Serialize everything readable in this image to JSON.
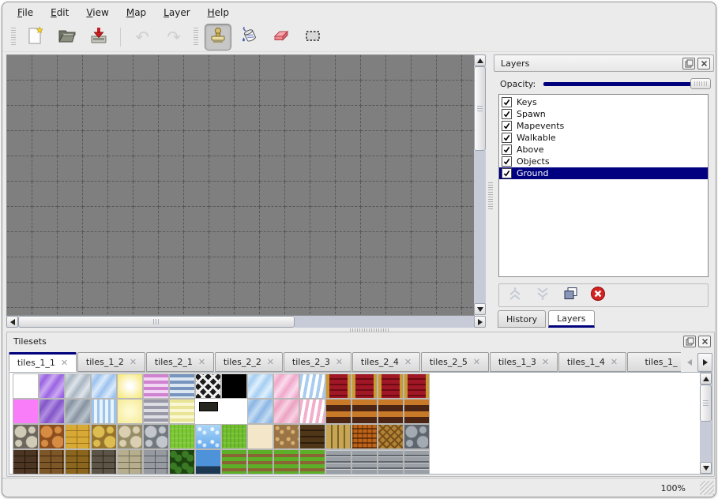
{
  "menubar": {
    "items": [
      {
        "label": "File"
      },
      {
        "label": "Edit"
      },
      {
        "label": "View"
      },
      {
        "label": "Map"
      },
      {
        "label": "Layer"
      },
      {
        "label": "Help"
      }
    ]
  },
  "toolbar": {
    "buttons": [
      {
        "name": "new-map",
        "icon": "new-file-icon",
        "disabled": false,
        "selected": false,
        "divider": "none"
      },
      {
        "name": "open-map",
        "icon": "open-file-icon",
        "disabled": false,
        "selected": false,
        "divider": "none"
      },
      {
        "name": "save-map",
        "icon": "save-icon",
        "disabled": false,
        "selected": false,
        "divider": "none"
      },
      {
        "name": "undo",
        "icon": "undo-icon",
        "disabled": true,
        "selected": false,
        "divider": "sep"
      },
      {
        "name": "redo",
        "icon": "redo-icon",
        "disabled": true,
        "selected": false,
        "divider": "none"
      },
      {
        "name": "stamp-tool",
        "icon": "stamp-icon",
        "disabled": false,
        "selected": true,
        "divider": "grip"
      },
      {
        "name": "fill-tool",
        "icon": "fill-icon",
        "disabled": false,
        "selected": false,
        "divider": "none"
      },
      {
        "name": "eraser-tool",
        "icon": "eraser-icon",
        "disabled": false,
        "selected": false,
        "divider": "none"
      },
      {
        "name": "select-tool",
        "icon": "select-icon",
        "disabled": false,
        "selected": false,
        "divider": "none"
      }
    ]
  },
  "layers_panel": {
    "title": "Layers",
    "opacity_label": "Opacity:",
    "opacity_slider_at": "max",
    "layers": [
      {
        "label": "Keys",
        "checked": true,
        "selected": false
      },
      {
        "label": "Spawn",
        "checked": true,
        "selected": false
      },
      {
        "label": "Mapevents",
        "checked": true,
        "selected": false
      },
      {
        "label": "Walkable",
        "checked": true,
        "selected": false
      },
      {
        "label": "Above",
        "checked": true,
        "selected": false
      },
      {
        "label": "Objects",
        "checked": true,
        "selected": false
      },
      {
        "label": "Ground",
        "checked": true,
        "selected": true
      }
    ],
    "buttons": [
      {
        "name": "move-layer-up",
        "icon": "move-up-icon",
        "disabled": true
      },
      {
        "name": "move-layer-down",
        "icon": "move-down-icon",
        "disabled": true
      },
      {
        "name": "duplicate-layer",
        "icon": "duplicate-icon",
        "disabled": false
      },
      {
        "name": "delete-layer",
        "icon": "delete-icon",
        "disabled": false
      }
    ],
    "tabs": [
      {
        "label": "History",
        "active": false
      },
      {
        "label": "Layers",
        "active": true
      }
    ]
  },
  "tilesets_panel": {
    "title": "Tilesets",
    "tabs": [
      {
        "label": "tiles_1_1",
        "active": true,
        "closable": true
      },
      {
        "label": "tiles_1_2",
        "active": false,
        "closable": true
      },
      {
        "label": "tiles_2_1",
        "active": false,
        "closable": true
      },
      {
        "label": "tiles_2_2",
        "active": false,
        "closable": true
      },
      {
        "label": "tiles_2_3",
        "active": false,
        "closable": true
      },
      {
        "label": "tiles_2_4",
        "active": false,
        "closable": true
      },
      {
        "label": "tiles_2_5",
        "active": false,
        "closable": true
      },
      {
        "label": "tiles_1_3",
        "active": false,
        "closable": true
      },
      {
        "label": "tiles_1_4",
        "active": false,
        "closable": true
      },
      {
        "label": "tiles_1_",
        "active": false,
        "closable": false
      }
    ],
    "palette_rows": [
      [
        {
          "k": "plain",
          "a": "#ffffff",
          "b": "#e8e8e8"
        },
        {
          "k": "glass",
          "a": "#9a64e2",
          "b": "#cbaaf2"
        },
        {
          "k": "glass",
          "a": "#a9b6c2",
          "b": "#dfe5ea"
        },
        {
          "k": "glass",
          "a": "#9cc2ee",
          "b": "#dcebfa"
        },
        {
          "k": "glow",
          "a": "#ffffff",
          "b": "#f7e97e"
        },
        {
          "k": "hstripes",
          "a": "#cf82cf",
          "b": "#f3d6f3"
        },
        {
          "k": "hstripes",
          "a": "#7694be",
          "b": "#dde7f2"
        },
        {
          "k": "lattice",
          "a": "#1c1c1c",
          "b": "#f0f0f0"
        },
        {
          "k": "plain",
          "a": "#000000",
          "b": "#000000"
        },
        {
          "k": "glass",
          "a": "#a6cef2",
          "b": "#e0f0fc"
        },
        {
          "k": "glass",
          "a": "#f0a8ca",
          "b": "#fadced"
        },
        {
          "k": "torn",
          "a": "#a8ccf0",
          "b": "#ffffff"
        },
        {
          "k": "curtain",
          "a": "#a01826",
          "b": "#c89a32"
        },
        {
          "k": "curtain",
          "a": "#a01826",
          "b": "#c89a32"
        },
        {
          "k": "curtain",
          "a": "#a01826",
          "b": "#c89a32"
        },
        {
          "k": "curtain",
          "a": "#a01826",
          "b": "#c89a32"
        }
      ],
      [
        {
          "k": "plain",
          "a": "#f97cf9",
          "b": "#f97cf9"
        },
        {
          "k": "glass",
          "a": "#8355c8",
          "b": "#b28fe2"
        },
        {
          "k": "glass",
          "a": "#8793a0",
          "b": "#b9c3cc"
        },
        {
          "k": "fringe",
          "a": "#9cc4ea",
          "b": "#e9f3fb"
        },
        {
          "k": "glow",
          "a": "#fefad0",
          "b": "#f6ec9c"
        },
        {
          "k": "hstripes",
          "a": "#9898a6",
          "b": "#dddde4"
        },
        {
          "k": "hstripes",
          "a": "#eae496",
          "b": "#f9f7d4"
        },
        {
          "k": "sign",
          "a": "#26261e",
          "b": "#000000"
        },
        null,
        {
          "k": "glass",
          "a": "#8cb6e4",
          "b": "#c4dcf2"
        },
        {
          "k": "glass",
          "a": "#eca2c2",
          "b": "#f8d2e2"
        },
        {
          "k": "torn",
          "a": "#f2aeca",
          "b": "#ffffff"
        },
        {
          "k": "bands",
          "a": "#c87a28",
          "b": "#4c2414"
        },
        {
          "k": "bands",
          "a": "#c87a28",
          "b": "#4c2414"
        },
        {
          "k": "bands",
          "a": "#c87a28",
          "b": "#4c2414"
        },
        {
          "k": "bands",
          "a": "#c87a28",
          "b": "#4c2414"
        }
      ],
      [
        {
          "k": "stones",
          "a": "#d0cab6",
          "b": "#6c665c"
        },
        {
          "k": "stones",
          "a": "#d78c44",
          "b": "#8c4e1e"
        },
        {
          "k": "brick",
          "a": "#d9a936",
          "b": "#9a741c"
        },
        {
          "k": "stones",
          "a": "#ddbd52",
          "b": "#96742c"
        },
        {
          "k": "stones",
          "a": "#dacfb0",
          "b": "#968c68"
        },
        {
          "k": "stones",
          "a": "#c3c7cd",
          "b": "#727880"
        },
        {
          "k": "grass",
          "a": "#7cca34",
          "b": "#5aa61e"
        },
        {
          "k": "water",
          "a": "#66aaec",
          "b": "#aad6f8"
        },
        {
          "k": "grass",
          "a": "#70c02c",
          "b": "#52a018"
        },
        {
          "k": "plain",
          "a": "#f4e6c8",
          "b": "#f4e6c8"
        },
        {
          "k": "dirt",
          "a": "#9a7444",
          "b": "#d8b070"
        },
        {
          "k": "shingle",
          "a": "#503618",
          "b": "#2e1d0c"
        },
        {
          "k": "planksv",
          "a": "#c6a654",
          "b": "#7c6226"
        },
        {
          "k": "weave",
          "a": "#bc6418",
          "b": "#5c2c0a"
        },
        {
          "k": "herring",
          "a": "#b28236",
          "b": "#764f18"
        },
        {
          "k": "stones",
          "a": "#a4aab2",
          "b": "#5e656e"
        }
      ],
      [
        {
          "k": "brick",
          "a": "#4c3522",
          "b": "#241506"
        },
        {
          "k": "brick",
          "a": "#7e5728",
          "b": "#3c240c"
        },
        {
          "k": "brick",
          "a": "#8c661e",
          "b": "#46320a"
        },
        {
          "k": "brick",
          "a": "#5c5446",
          "b": "#2c2618"
        },
        {
          "k": "brick",
          "a": "#b6ae8e",
          "b": "#706a52"
        },
        {
          "k": "brick",
          "a": "#979ba1",
          "b": "#555960"
        },
        {
          "k": "hedge",
          "a": "#3a7a24",
          "b": "#1c4410"
        },
        {
          "k": "wateredge",
          "a": "#4e92da",
          "b": "#1c3852"
        },
        {
          "k": "rows",
          "a": "#5cb028",
          "b": "#8a6434"
        },
        {
          "k": "rows",
          "a": "#5cb028",
          "b": "#8a6434"
        },
        {
          "k": "rows",
          "a": "#5cb028",
          "b": "#8a6434"
        },
        {
          "k": "rows",
          "a": "#5cb028",
          "b": "#8a6434"
        },
        {
          "k": "planksh",
          "a": "#9aa0a6",
          "b": "#60666c"
        },
        {
          "k": "planksh",
          "a": "#9aa0a6",
          "b": "#60666c"
        },
        {
          "k": "planksh",
          "a": "#9aa0a6",
          "b": "#60666c"
        },
        {
          "k": "planksh",
          "a": "#9aa0a6",
          "b": "#60666c"
        }
      ]
    ]
  },
  "statusbar": {
    "zoom": "100%"
  },
  "colors": {
    "accent": "#00007c",
    "selection": "#000080",
    "canvas_bg": "#7f7f7f",
    "grid_line": "#585858",
    "panel_bg": "#ebebeb",
    "delete_red": "#d42222"
  }
}
